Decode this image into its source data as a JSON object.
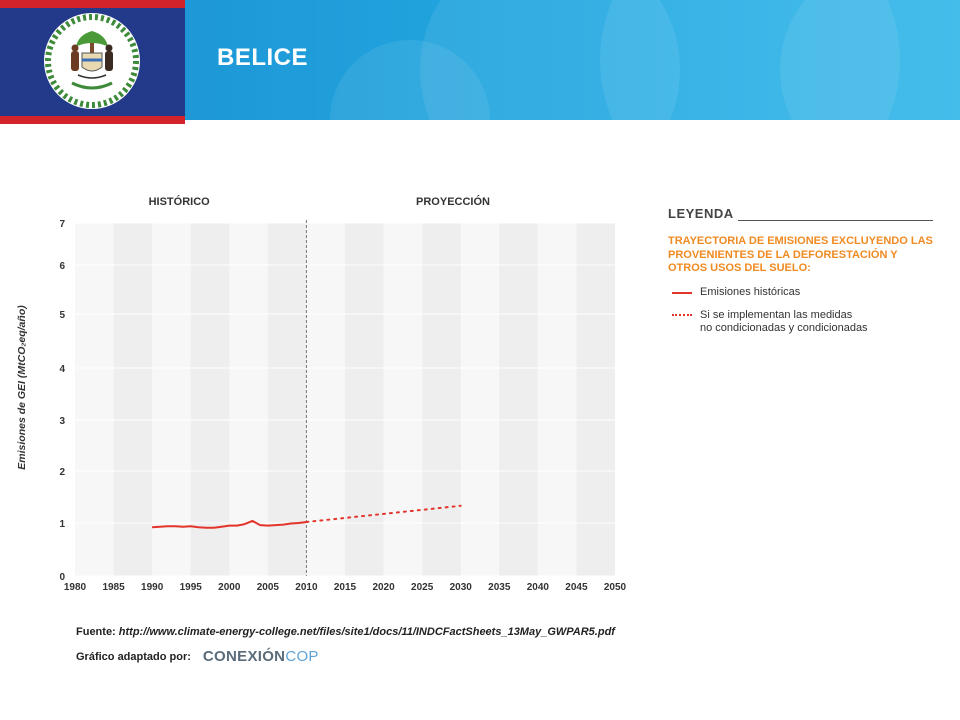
{
  "header": {
    "title": "BELICE"
  },
  "colors": {
    "series": "#e2352b",
    "legend_subtitle": "#f08a22",
    "header_bg": "#1f9ad6",
    "flag_blue": "#233a8a",
    "flag_red": "#d2232a"
  },
  "chart_data": {
    "type": "line",
    "section_labels": [
      "HISTÓRICO",
      "PROYECCIÓN"
    ],
    "ylabel": "Emisiones de GEI (MtCO₂eq/año)",
    "xlabel": "",
    "x_ticks": [
      "1980",
      "1985",
      "1990",
      "1995",
      "2000",
      "2005",
      "2010",
      "2015",
      "2020",
      "2025",
      "2030",
      "2035",
      "2040",
      "2045",
      "2050"
    ],
    "y_ticks": [
      "0",
      "1",
      "2",
      "3",
      "4",
      "5",
      "6",
      "7"
    ],
    "xlim": [
      1980,
      2050
    ],
    "ylim": [
      0,
      7
    ],
    "divider_x": 2010,
    "series": [
      {
        "name": "Emisiones históricas",
        "style": "solid",
        "x": [
          1990,
          1991,
          1992,
          1993,
          1994,
          1995,
          1996,
          1997,
          1998,
          1999,
          2000,
          2001,
          2002,
          2003,
          2004,
          2005,
          2006,
          2007,
          2008,
          2009,
          2010
        ],
        "y": [
          0.92,
          0.93,
          0.94,
          0.94,
          0.93,
          0.94,
          0.92,
          0.91,
          0.91,
          0.93,
          0.95,
          0.95,
          0.98,
          1.04,
          0.96,
          0.95,
          0.96,
          0.97,
          0.99,
          1.0,
          1.02
        ]
      },
      {
        "name": "Si se implementan las medidas no condicionadas y condicionadas",
        "style": "dotted",
        "x": [
          2010,
          2030
        ],
        "y": [
          1.02,
          1.33
        ]
      }
    ]
  },
  "legend": {
    "title": "LEYENDA",
    "subtitle": "TRAYECTORIA DE EMISIONES EXCLUYENDO LAS PROVENIENTES DE LA DEFORESTACIÓN Y OTROS USOS DEL SUELO:",
    "item1": "Emisiones históricas",
    "item2_line1": "Si se implementan las medidas",
    "item2_line2": "no condicionadas y condicionadas"
  },
  "footer": {
    "source_label": "Fuente:",
    "source_url": "http://www.climate-energy-college.net/files/site1/docs/11/INDCFactSheets_13May_GWPAR5.pdf",
    "credit_label": "Gráfico adaptado por:",
    "logo_part1": "CONEXIÓN",
    "logo_part2": "COP"
  }
}
